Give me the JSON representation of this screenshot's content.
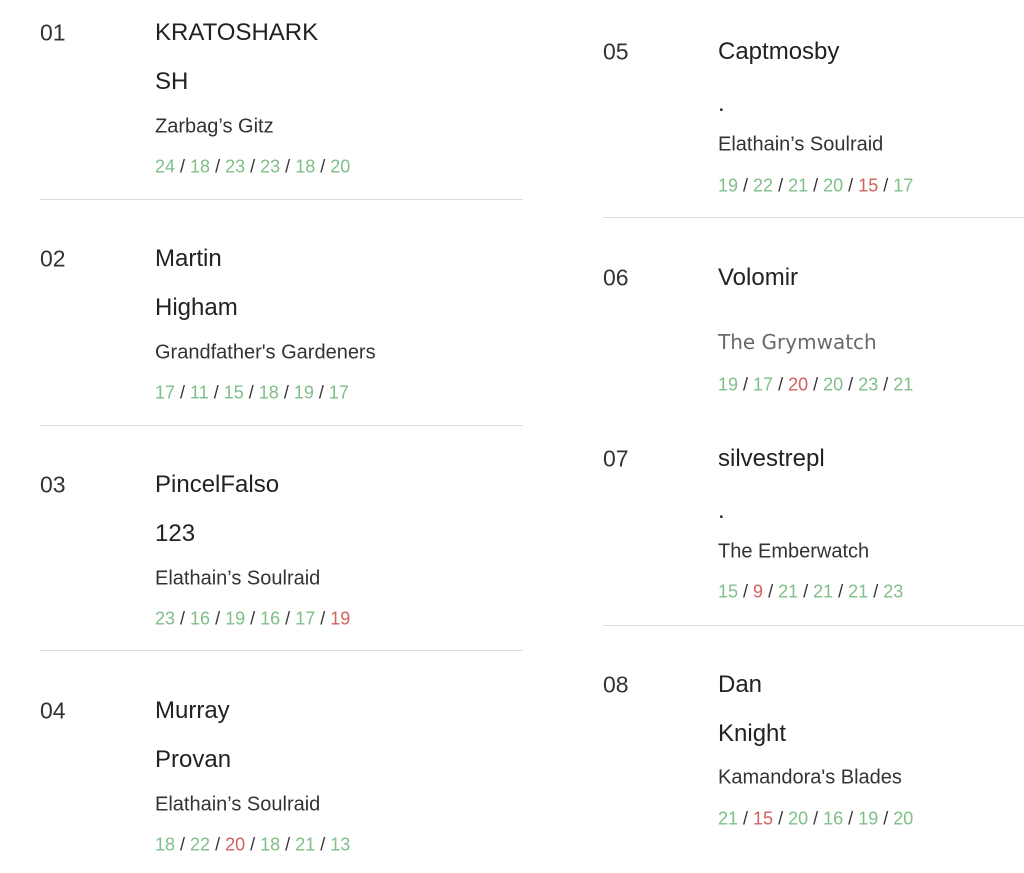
{
  "colors": {
    "green": "#7fbf88",
    "red": "#d0625c"
  },
  "entries": [
    {
      "num": "01",
      "lines": [
        "KRATOSHARK",
        "SH"
      ],
      "team": "Zarbag’s Gitz",
      "scores": [
        {
          "v": "24",
          "c": "g"
        },
        {
          "v": "18",
          "c": "g"
        },
        {
          "v": "23",
          "c": "g"
        },
        {
          "v": "23",
          "c": "g"
        },
        {
          "v": "18",
          "c": "g"
        },
        {
          "v": "20",
          "c": "g"
        }
      ]
    },
    {
      "num": "02",
      "lines": [
        "Martin",
        "Higham"
      ],
      "team": "Grandfather's Gardeners",
      "scores": [
        {
          "v": "17",
          "c": "g"
        },
        {
          "v": "11",
          "c": "g"
        },
        {
          "v": "15",
          "c": "g"
        },
        {
          "v": "18",
          "c": "g"
        },
        {
          "v": "19",
          "c": "g"
        },
        {
          "v": "17",
          "c": "g"
        }
      ]
    },
    {
      "num": "03",
      "lines": [
        "PincelFalso",
        "123"
      ],
      "team": "Elathain’s Soulraid",
      "scores": [
        {
          "v": "23",
          "c": "g"
        },
        {
          "v": "16",
          "c": "g"
        },
        {
          "v": "19",
          "c": "g"
        },
        {
          "v": "16",
          "c": "g"
        },
        {
          "v": "17",
          "c": "g"
        },
        {
          "v": "19",
          "c": "r"
        }
      ]
    },
    {
      "num": "04",
      "lines": [
        "Murray",
        "Provan"
      ],
      "team": "Elathain’s Soulraid",
      "scores": [
        {
          "v": "18",
          "c": "g"
        },
        {
          "v": "22",
          "c": "g"
        },
        {
          "v": "20",
          "c": "r"
        },
        {
          "v": "18",
          "c": "g"
        },
        {
          "v": "21",
          "c": "g"
        },
        {
          "v": "13",
          "c": "g"
        }
      ]
    },
    {
      "num": "05",
      "lines": [
        "Captmosby",
        "."
      ],
      "team": "Elathain’s Soulraid",
      "scores": [
        {
          "v": "19",
          "c": "g"
        },
        {
          "v": "22",
          "c": "g"
        },
        {
          "v": "21",
          "c": "g"
        },
        {
          "v": "20",
          "c": "g"
        },
        {
          "v": "15",
          "c": "r"
        },
        {
          "v": "17",
          "c": "g"
        }
      ]
    },
    {
      "num": "06",
      "lines": [
        "Volomir"
      ],
      "team": "The Grymwatch",
      "scores": [
        {
          "v": "19",
          "c": "g"
        },
        {
          "v": "17",
          "c": "g"
        },
        {
          "v": "20",
          "c": "r"
        },
        {
          "v": "20",
          "c": "g"
        },
        {
          "v": "23",
          "c": "g"
        },
        {
          "v": "21",
          "c": "g"
        }
      ]
    },
    {
      "num": "07",
      "lines": [
        "silvestrepl",
        "."
      ],
      "team": "The Emberwatch",
      "scores": [
        {
          "v": "15",
          "c": "g"
        },
        {
          "v": "9",
          "c": "r"
        },
        {
          "v": "21",
          "c": "g"
        },
        {
          "v": "21",
          "c": "g"
        },
        {
          "v": "21",
          "c": "g"
        },
        {
          "v": "23",
          "c": "g"
        }
      ]
    },
    {
      "num": "08",
      "lines": [
        "Dan",
        "Knight"
      ],
      "team": "Kamandora's Blades",
      "scores": [
        {
          "v": "21",
          "c": "g"
        },
        {
          "v": "15",
          "c": "r"
        },
        {
          "v": "20",
          "c": "g"
        },
        {
          "v": "16",
          "c": "g"
        },
        {
          "v": "19",
          "c": "g"
        },
        {
          "v": "20",
          "c": "g"
        }
      ]
    }
  ]
}
